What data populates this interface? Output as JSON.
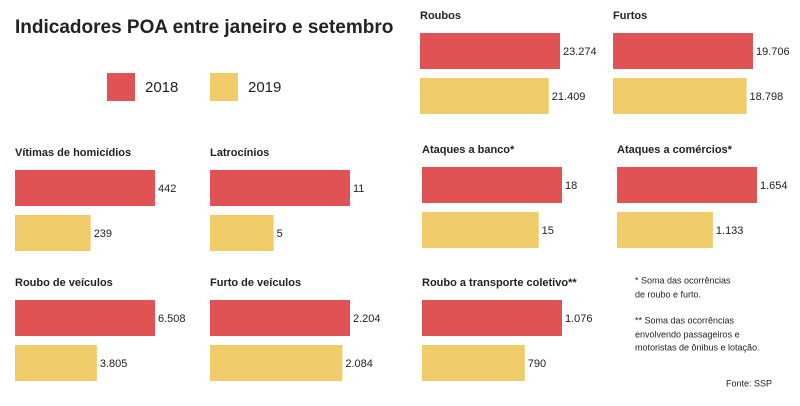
{
  "title": "Indicadores POA entre janeiro e setembro",
  "legend": [
    {
      "name": "2018",
      "color": "#e05254"
    },
    {
      "name": "2019",
      "color": "#f0cb69"
    }
  ],
  "chart_data": [
    {
      "type": "bar",
      "title": "Roubos",
      "values": [
        23274,
        21409
      ],
      "value_labels": [
        "23.274",
        "21.409"
      ]
    },
    {
      "type": "bar",
      "title": "Furtos",
      "values": [
        19706,
        18798
      ],
      "value_labels": [
        "19.706",
        "18.798"
      ]
    },
    {
      "type": "bar",
      "title": "Vítimas de homicídios",
      "values": [
        442,
        239
      ]
    },
    {
      "type": "bar",
      "title": "Latrocínios",
      "values": [
        11,
        5
      ]
    },
    {
      "type": "bar",
      "title": "Ataques a banco*",
      "values": [
        18,
        15
      ]
    },
    {
      "type": "bar",
      "title": "Ataques a comércios*",
      "values": [
        1654,
        1133
      ],
      "value_labels": [
        "1.654",
        "1.133"
      ]
    },
    {
      "type": "bar",
      "title": "Roubo de veículos",
      "values": [
        6508,
        3805
      ],
      "value_labels": [
        "6.508",
        "3.805"
      ]
    },
    {
      "type": "bar",
      "title": "Furto de veículos",
      "values": [
        2204,
        2084
      ],
      "value_labels": [
        "2.204",
        "2.084"
      ]
    },
    {
      "type": "bar",
      "title": "Roubo a transporte coletivo**",
      "values": [
        1076,
        790
      ],
      "value_labels": [
        "1.076",
        "790"
      ]
    }
  ],
  "notes": [
    "* Soma das ocorrências",
    "de roubo e furto.",
    "** Soma das ocorrências",
    "envolvendo passageiros e",
    "motoristas de ônibus e lotação."
  ],
  "source": "Fonte: SSP"
}
